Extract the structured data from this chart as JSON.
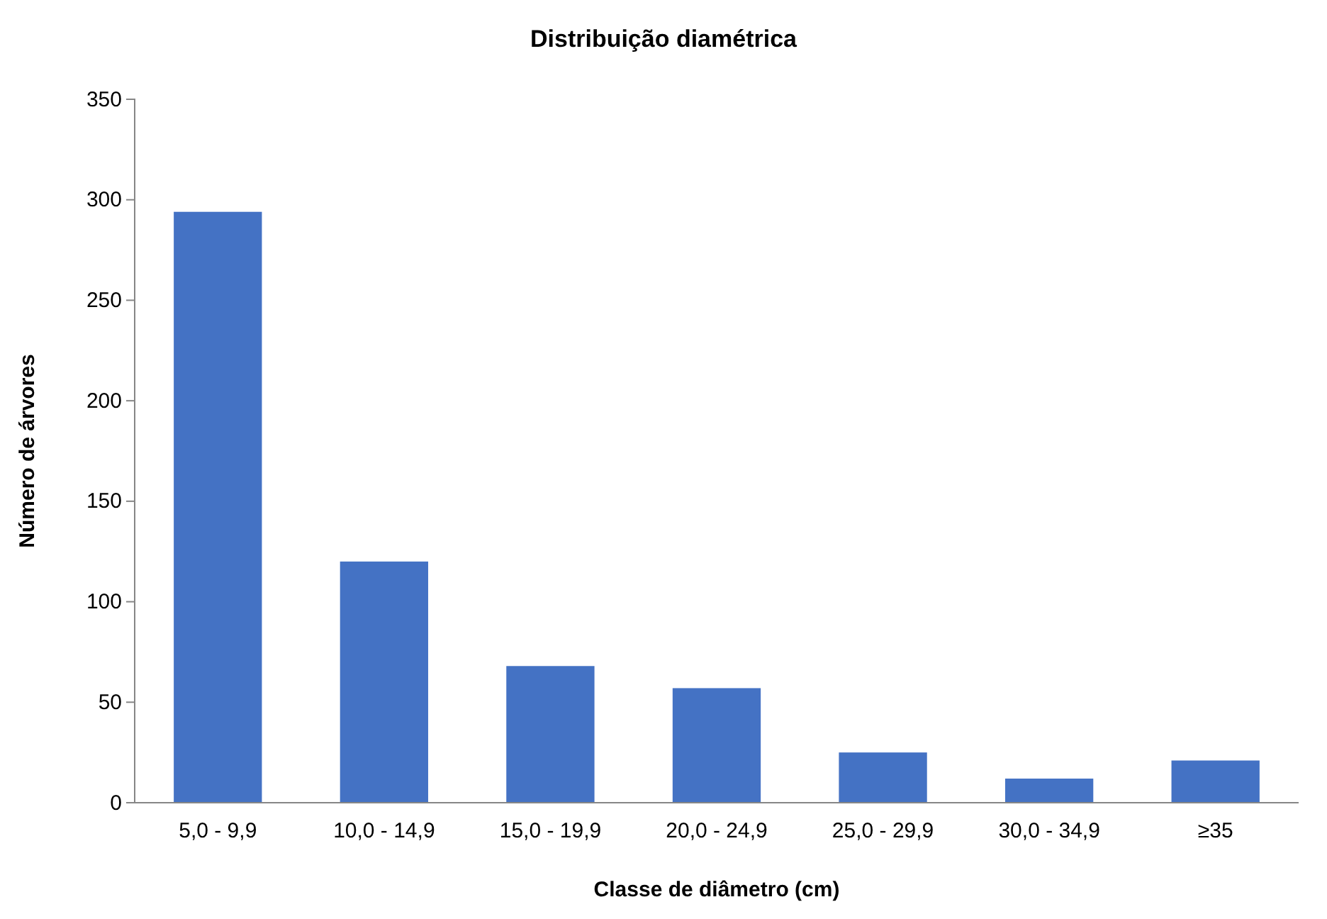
{
  "chart_data": {
    "type": "bar",
    "title": "Distribuição diamétrica",
    "xlabel": "Classe de diâmetro (cm)",
    "ylabel": "Número de árvores",
    "categories": [
      "5,0 - 9,9",
      "10,0 - 14,9",
      "15,0 - 19,9",
      "20,0 - 24,9",
      "25,0 - 29,9",
      "30,0 - 34,9",
      "≥35"
    ],
    "values": [
      294,
      120,
      68,
      57,
      25,
      12,
      21
    ],
    "color": "#4472c4",
    "ylim": [
      0,
      350
    ],
    "yticks": [
      0,
      50,
      100,
      150,
      200,
      250,
      300,
      350
    ],
    "grid": false
  }
}
